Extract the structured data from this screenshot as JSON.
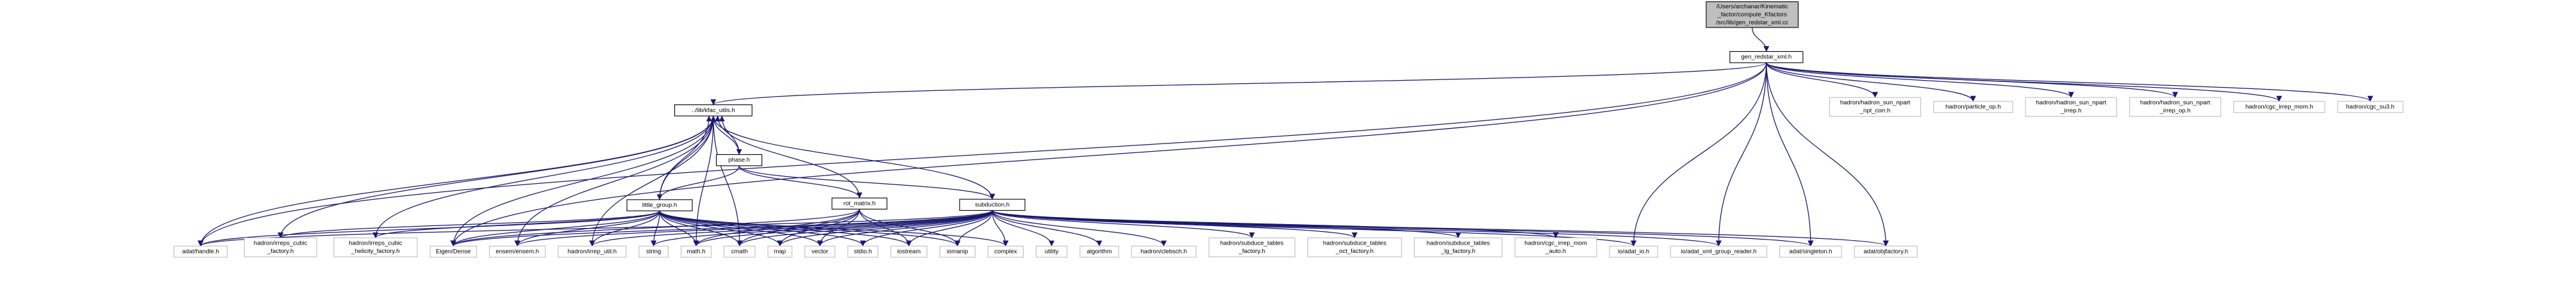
{
  "colors": {
    "edge": "#191970",
    "root_fill": "#bfbfbf",
    "node_fill": "#ffffff",
    "internal_border": "#000000",
    "leaf_border": "#bfbfbf",
    "text": "#000000"
  },
  "nodes": [
    {
      "id": "root",
      "lines": [
        "/Users/archanar/Kinematic",
        "_factor/compute_Kfactors",
        "/src/lib/gen_redstar_xml.cc"
      ],
      "kind": "root"
    },
    {
      "id": "gen_redstar",
      "lines": [
        "gen_redstar_xml.h"
      ],
      "kind": "internal"
    },
    {
      "id": "kfac_utils",
      "lines": [
        "../lib/kfac_utils.h"
      ],
      "kind": "internal"
    },
    {
      "id": "phase",
      "lines": [
        "phase.h"
      ],
      "kind": "internal"
    },
    {
      "id": "little_group",
      "lines": [
        "little_group.h"
      ],
      "kind": "internal"
    },
    {
      "id": "rot_matrix",
      "lines": [
        "rot_matrix.h"
      ],
      "kind": "internal"
    },
    {
      "id": "subduction",
      "lines": [
        "subduction.h"
      ],
      "kind": "internal"
    },
    {
      "id": "adat_handle",
      "lines": [
        "adat/handle.h"
      ],
      "kind": "leaf"
    },
    {
      "id": "irreps_cubic_factory",
      "lines": [
        "hadron/irreps_cubic",
        "_factory.h"
      ],
      "kind": "leaf"
    },
    {
      "id": "irreps_cubic_helicity",
      "lines": [
        "hadron/irreps_cubic",
        "_helicity_factory.h"
      ],
      "kind": "leaf"
    },
    {
      "id": "eigen_dense",
      "lines": [
        "Eigen/Dense"
      ],
      "kind": "leaf"
    },
    {
      "id": "ensem",
      "lines": [
        "ensem/ensem.h"
      ],
      "kind": "leaf"
    },
    {
      "id": "irrep_util",
      "lines": [
        "hadron/irrep_util.h"
      ],
      "kind": "leaf"
    },
    {
      "id": "string",
      "lines": [
        "string"
      ],
      "kind": "leaf"
    },
    {
      "id": "math",
      "lines": [
        "math.h"
      ],
      "kind": "leaf"
    },
    {
      "id": "cmath",
      "lines": [
        "cmath"
      ],
      "kind": "leaf"
    },
    {
      "id": "map",
      "lines": [
        "map"
      ],
      "kind": "leaf"
    },
    {
      "id": "vector",
      "lines": [
        "vector"
      ],
      "kind": "leaf"
    },
    {
      "id": "stdio",
      "lines": [
        "stdio.h"
      ],
      "kind": "leaf"
    },
    {
      "id": "iostream",
      "lines": [
        "iostream"
      ],
      "kind": "leaf"
    },
    {
      "id": "iomanip",
      "lines": [
        "iomanip"
      ],
      "kind": "leaf"
    },
    {
      "id": "complex",
      "lines": [
        "complex"
      ],
      "kind": "leaf"
    },
    {
      "id": "utility",
      "lines": [
        "utility"
      ],
      "kind": "leaf"
    },
    {
      "id": "algorithm",
      "lines": [
        "algorithm"
      ],
      "kind": "leaf"
    },
    {
      "id": "clebsch",
      "lines": [
        "hadron/clebsch.h"
      ],
      "kind": "leaf"
    },
    {
      "id": "subduce_factory",
      "lines": [
        "hadron/subduce_tables",
        "_factory.h"
      ],
      "kind": "leaf"
    },
    {
      "id": "subduce_oct",
      "lines": [
        "hadron/subduce_tables",
        "_oct_factory.h"
      ],
      "kind": "leaf"
    },
    {
      "id": "subduce_lg",
      "lines": [
        "hadron/subduce_tables",
        "_lg_factory.h"
      ],
      "kind": "leaf"
    },
    {
      "id": "cgc_irrep_mom_auto",
      "lines": [
        "hadron/cgc_irrep_mom",
        "_auto.h"
      ],
      "kind": "leaf"
    },
    {
      "id": "adat_io",
      "lines": [
        "io/adat_io.h"
      ],
      "kind": "leaf"
    },
    {
      "id": "xml_group_reader",
      "lines": [
        "io/adat_xml_group_reader.h"
      ],
      "kind": "leaf"
    },
    {
      "id": "singleton",
      "lines": [
        "adat/singleton.h"
      ],
      "kind": "leaf"
    },
    {
      "id": "objfactory",
      "lines": [
        "adat/objfactory.h"
      ],
      "kind": "leaf"
    },
    {
      "id": "sun_npart_npt_corr",
      "lines": [
        "hadron/hadron_sun_npart",
        "_npt_corr.h"
      ],
      "kind": "leaf"
    },
    {
      "id": "particle_op",
      "lines": [
        "hadron/particle_op.h"
      ],
      "kind": "leaf"
    },
    {
      "id": "sun_npart_irrep",
      "lines": [
        "hadron/hadron_sun_npart",
        "_irrep.h"
      ],
      "kind": "leaf"
    },
    {
      "id": "sun_npart_irrep_op",
      "lines": [
        "hadron/hadron_sun_npart",
        "_irrep_op.h"
      ],
      "kind": "leaf"
    },
    {
      "id": "cgc_irrep_mom",
      "lines": [
        "hadron/cgc_irrep_mom.h"
      ],
      "kind": "leaf"
    },
    {
      "id": "cgc_su3",
      "lines": [
        "hadron/cgc_su3.h"
      ],
      "kind": "leaf"
    }
  ],
  "edges": [
    [
      "root",
      "gen_redstar"
    ],
    [
      "gen_redstar",
      "kfac_utils"
    ],
    [
      "gen_redstar",
      "adat_handle"
    ],
    [
      "gen_redstar",
      "eigen_dense"
    ],
    [
      "gen_redstar",
      "adat_io"
    ],
    [
      "gen_redstar",
      "xml_group_reader"
    ],
    [
      "gen_redstar",
      "singleton"
    ],
    [
      "gen_redstar",
      "objfactory"
    ],
    [
      "gen_redstar",
      "sun_npart_npt_corr"
    ],
    [
      "gen_redstar",
      "particle_op"
    ],
    [
      "gen_redstar",
      "sun_npart_irrep"
    ],
    [
      "gen_redstar",
      "sun_npart_irrep_op"
    ],
    [
      "gen_redstar",
      "cgc_irrep_mom"
    ],
    [
      "gen_redstar",
      "cgc_su3"
    ],
    [
      "kfac_utils",
      "phase"
    ],
    [
      "kfac_utils",
      "little_group"
    ],
    [
      "kfac_utils",
      "adat_handle"
    ],
    [
      "kfac_utils",
      "irreps_cubic_factory"
    ],
    [
      "kfac_utils",
      "irreps_cubic_helicity"
    ],
    [
      "kfac_utils",
      "eigen_dense"
    ],
    [
      "kfac_utils",
      "ensem"
    ],
    [
      "kfac_utils",
      "irrep_util"
    ],
    [
      "kfac_utils",
      "math"
    ],
    [
      "kfac_utils",
      "cmath"
    ],
    [
      "phase",
      "kfac_utils"
    ],
    [
      "phase",
      "little_group"
    ],
    [
      "phase",
      "rot_matrix"
    ],
    [
      "phase",
      "subduction"
    ],
    [
      "rot_matrix",
      "kfac_utils"
    ],
    [
      "rot_matrix",
      "eigen_dense"
    ],
    [
      "rot_matrix",
      "math"
    ],
    [
      "rot_matrix",
      "cmath"
    ],
    [
      "rot_matrix",
      "map"
    ],
    [
      "rot_matrix",
      "vector"
    ],
    [
      "rot_matrix",
      "iostream"
    ],
    [
      "rot_matrix",
      "iomanip"
    ],
    [
      "little_group",
      "kfac_utils"
    ],
    [
      "little_group",
      "adat_handle"
    ],
    [
      "little_group",
      "irreps_cubic_factory"
    ],
    [
      "little_group",
      "irreps_cubic_helicity"
    ],
    [
      "little_group",
      "eigen_dense"
    ],
    [
      "little_group",
      "ensem"
    ],
    [
      "little_group",
      "irrep_util"
    ],
    [
      "little_group",
      "string"
    ],
    [
      "little_group",
      "math"
    ],
    [
      "little_group",
      "cmath"
    ],
    [
      "little_group",
      "map"
    ],
    [
      "little_group",
      "vector"
    ],
    [
      "little_group",
      "stdio"
    ],
    [
      "little_group",
      "iostream"
    ],
    [
      "little_group",
      "iomanip"
    ],
    [
      "little_group",
      "complex"
    ],
    [
      "subduction",
      "kfac_utils"
    ],
    [
      "subduction",
      "adat_handle"
    ],
    [
      "subduction",
      "eigen_dense"
    ],
    [
      "subduction",
      "ensem"
    ],
    [
      "subduction",
      "irrep_util"
    ],
    [
      "subduction",
      "string"
    ],
    [
      "subduction",
      "math"
    ],
    [
      "subduction",
      "cmath"
    ],
    [
      "subduction",
      "map"
    ],
    [
      "subduction",
      "vector"
    ],
    [
      "subduction",
      "stdio"
    ],
    [
      "subduction",
      "iostream"
    ],
    [
      "subduction",
      "iomanip"
    ],
    [
      "subduction",
      "complex"
    ],
    [
      "subduction",
      "utility"
    ],
    [
      "subduction",
      "algorithm"
    ],
    [
      "subduction",
      "clebsch"
    ],
    [
      "subduction",
      "subduce_factory"
    ],
    [
      "subduction",
      "subduce_oct"
    ],
    [
      "subduction",
      "subduce_lg"
    ],
    [
      "subduction",
      "cgc_irrep_mom_auto"
    ],
    [
      "subduction",
      "adat_io"
    ],
    [
      "subduction",
      "xml_group_reader"
    ],
    [
      "subduction",
      "singleton"
    ],
    [
      "subduction",
      "objfactory"
    ]
  ]
}
